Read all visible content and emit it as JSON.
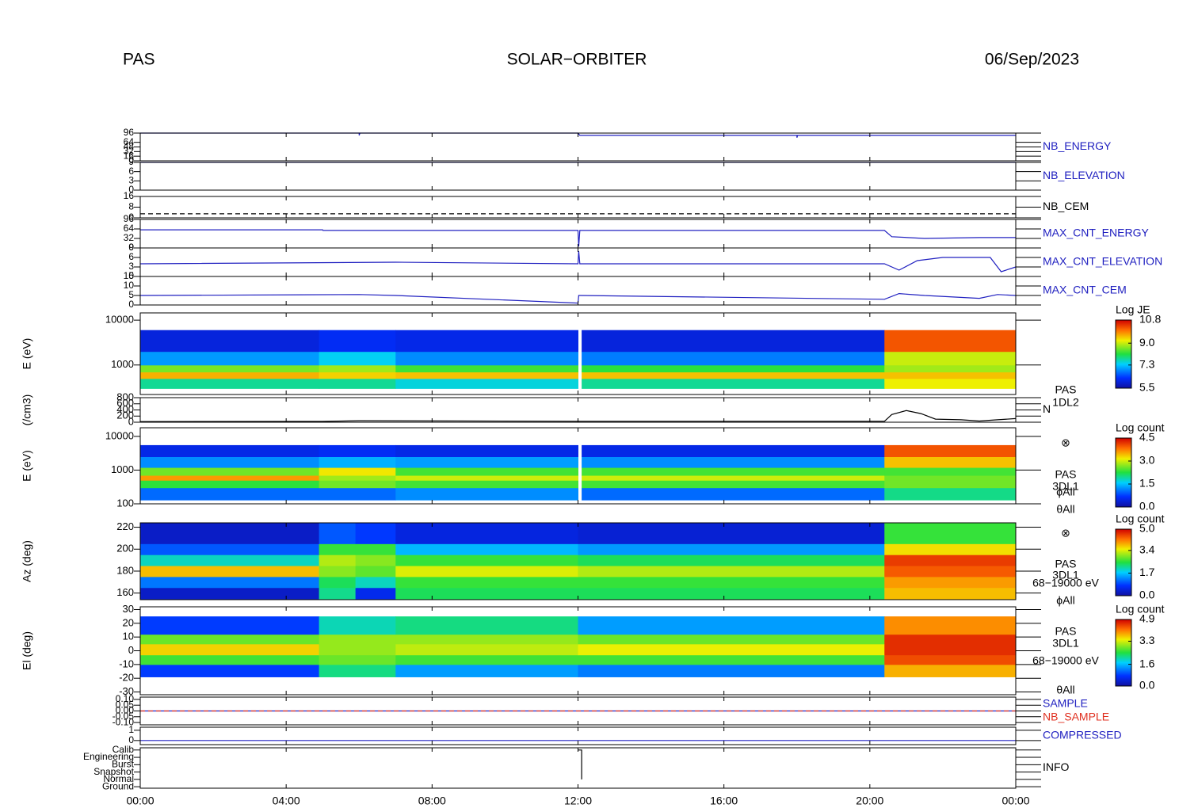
{
  "header": {
    "left": "PAS",
    "center": "SOLAR−ORBITER",
    "right": "06/Sep/2023"
  },
  "chart_data": [
    {
      "type": "line",
      "ylim": [
        0,
        96
      ],
      "yticks": [
        0,
        16,
        32,
        48,
        64,
        96
      ],
      "series": [
        {
          "name": "NB_ENERGY",
          "color": "#2020c0",
          "x": [
            0,
            6,
            6,
            6.02,
            12,
            12.05,
            18,
            18,
            18.02,
            24
          ],
          "values": [
            96,
            96,
            88,
            96,
            96,
            88,
            88,
            80,
            88,
            88
          ]
        }
      ]
    },
    {
      "type": "line",
      "ylim": [
        0,
        9
      ],
      "yticks": [
        0,
        3,
        6,
        9
      ],
      "series": [
        {
          "name": "NB_ELEVATION",
          "color": "#2020c0",
          "x": [
            0,
            24
          ],
          "values": [
            9,
            9
          ]
        }
      ]
    },
    {
      "type": "line",
      "ylim": [
        0,
        16
      ],
      "yticks": [
        0,
        8,
        16
      ],
      "series": [
        {
          "name": "NB_CEM",
          "color": "#000000",
          "linestyle": "dashed",
          "x": [
            0,
            24
          ],
          "values": [
            3,
            3
          ]
        }
      ]
    },
    {
      "type": "line",
      "ylim": [
        0,
        96
      ],
      "yticks": [
        0,
        32,
        64,
        96
      ],
      "series": [
        {
          "name": "MAX_CNT_ENERGY",
          "color": "#2020c0",
          "x": [
            0,
            5,
            5.01,
            12,
            12.02,
            12.05,
            20.4,
            20.6,
            21.5,
            23,
            24
          ],
          "values": [
            61,
            61,
            59,
            59,
            5,
            59,
            59,
            38,
            32,
            35,
            35
          ]
        }
      ]
    },
    {
      "type": "line",
      "ylim": [
        0,
        9
      ],
      "yticks": [
        0,
        3,
        6,
        9
      ],
      "series": [
        {
          "name": "MAX_CNT_ELEVATION",
          "color": "#2020c0",
          "x": [
            0,
            7,
            12,
            12.02,
            12.05,
            20.4,
            20.8,
            21.3,
            22,
            23.3,
            23.6,
            24
          ],
          "values": [
            4,
            4.5,
            4,
            8,
            4,
            4,
            2,
            5,
            6,
            6,
            1.5,
            3
          ]
        }
      ]
    },
    {
      "type": "line",
      "ylim": [
        0,
        15
      ],
      "yticks": [
        0,
        5,
        10,
        15
      ],
      "series": [
        {
          "name": "MAX_CNT_CEM",
          "color": "#2020c0",
          "x": [
            0,
            6,
            7,
            12,
            12.02,
            12.05,
            20.4,
            20.8,
            21.5,
            23,
            23.5,
            24
          ],
          "values": [
            5,
            5.5,
            5,
            1,
            5,
            5,
            3,
            6,
            5,
            3.5,
            5.5,
            5
          ]
        }
      ]
    },
    {
      "type": "heatmap",
      "ylabel": "E (eV)",
      "ylog": true,
      "ylim": [
        220,
        14500
      ],
      "yticks": [
        1000,
        10000
      ],
      "colorbar_title": "Log JE",
      "clim": [
        5.5,
        10.8
      ],
      "cticks": [
        5.5,
        7.3,
        {
          "value": 9,
          "label": "9.0"
        },
        10.8
      ],
      "x": [
        0,
        4.9,
        7,
        12,
        12.1,
        20.4,
        24
      ],
      "y": [
        300,
        500,
        700,
        1000,
        2000,
        6000
      ],
      "values": [
        [
          7.8,
          7.8,
          7.5,
          null,
          7.8,
          9.2
        ],
        [
          9.6,
          9.4,
          9.5,
          null,
          9.5,
          9.5
        ],
        [
          8.6,
          8.8,
          8.3,
          null,
          8.2,
          8.8
        ],
        [
          7.0,
          7.4,
          6.9,
          null,
          6.8,
          9.0
        ],
        [
          6.0,
          6.2,
          6.1,
          null,
          6.0,
          10.2
        ]
      ]
    },
    {
      "type": "line",
      "ylabel": "(/cm3)",
      "ylim": [
        0,
        800
      ],
      "yticks": [
        0,
        200,
        400,
        600,
        800
      ],
      "side_labels": [
        "PAS",
        "1DL2"
      ],
      "series": [
        {
          "name": "N",
          "color": "#000000",
          "x": [
            0,
            5,
            6,
            12,
            20.4,
            20.6,
            21,
            21.4,
            21.8,
            22.5,
            23,
            23.5,
            24
          ],
          "values": [
            20,
            25,
            50,
            30,
            30,
            250,
            380,
            280,
            100,
            80,
            40,
            80,
            120
          ]
        }
      ]
    },
    {
      "type": "heatmap",
      "ylabel": "E (eV)",
      "ylog": true,
      "ylim": [
        100,
        18000
      ],
      "yticks": [
        100,
        1000,
        10000
      ],
      "colorbar_title": "Log count",
      "clim": [
        0,
        4.5
      ],
      "cticks": [
        {
          "value": 0,
          "label": "0.0"
        },
        1.5,
        {
          "value": 3,
          "label": "3.0"
        },
        4.5
      ],
      "side_labels": [
        "⊗",
        "PAS",
        "3DL1",
        "ϕAll",
        "θAll"
      ],
      "x": [
        0,
        4.9,
        7,
        12,
        12.1,
        20.4,
        24
      ],
      "y": [
        130,
        300,
        500,
        700,
        1200,
        2500,
        5500
      ],
      "values": [
        [
          1.0,
          1.0,
          1.2,
          null,
          1.0,
          2.0
        ],
        [
          2.3,
          2.6,
          2.4,
          null,
          2.4,
          2.6
        ],
        [
          3.6,
          2.8,
          3.0,
          null,
          3.0,
          2.6
        ],
        [
          2.6,
          3.2,
          2.4,
          null,
          2.4,
          2.4
        ],
        [
          1.2,
          1.4,
          1.3,
          null,
          1.2,
          3.4
        ],
        [
          0.5,
          0.6,
          0.5,
          null,
          0.5,
          4.0
        ]
      ]
    },
    {
      "type": "heatmap",
      "ylabel": "Az (deg)",
      "ylim": [
        154,
        224
      ],
      "yticks": [
        160,
        180,
        200,
        220
      ],
      "colorbar_title": "Log count",
      "clim": [
        0,
        5
      ],
      "cticks": [
        {
          "value": 0,
          "label": "0.0"
        },
        1.7,
        3.4,
        {
          "value": 5,
          "label": "5.0"
        }
      ],
      "side_labels": [
        "⊗",
        "PAS",
        "3DL1",
        "68−19000 eV",
        "ϕAll"
      ],
      "x": [
        0,
        4.9,
        5.9,
        7,
        12,
        20.4,
        24
      ],
      "y": [
        154,
        165,
        175,
        185,
        195,
        205,
        224
      ],
      "values": [
        [
          0.3,
          2.2,
          0.6,
          2.4,
          2.4,
          3.8
        ],
        [
          1.2,
          2.4,
          2.0,
          2.6,
          2.6,
          4.0
        ],
        [
          3.8,
          3.0,
          2.8,
          3.4,
          3.2,
          4.4
        ],
        [
          2.0,
          3.2,
          3.0,
          2.6,
          2.4,
          4.6
        ],
        [
          1.0,
          2.6,
          2.6,
          1.6,
          1.4,
          3.6
        ],
        [
          0.3,
          1.0,
          0.8,
          0.5,
          0.4,
          2.6
        ]
      ]
    },
    {
      "type": "heatmap",
      "ylabel": "El (deg)",
      "ylim": [
        -32,
        32
      ],
      "yticks": [
        -30,
        -20,
        -10,
        0,
        10,
        20,
        30
      ],
      "colorbar_title": "Log count",
      "clim": [
        0,
        4.9
      ],
      "cticks": [
        {
          "value": 0,
          "label": "0.0"
        },
        1.6,
        3.3,
        4.9
      ],
      "side_labels": [
        "PAS",
        "3DL1",
        "68−19000 eV",
        "θAll"
      ],
      "x": [
        0,
        4.9,
        7,
        12,
        20.4,
        24
      ],
      "y": [
        -19,
        -10,
        -3,
        5,
        12,
        25
      ],
      "values": [
        [
          0.8,
          2.2,
          1.4,
          1.2,
          3.8
        ],
        [
          2.6,
          2.8,
          2.6,
          2.6,
          4.4
        ],
        [
          3.6,
          3.0,
          3.2,
          3.4,
          4.6
        ],
        [
          2.8,
          3.0,
          3.0,
          2.8,
          4.6
        ],
        [
          0.8,
          2.0,
          2.2,
          1.4,
          4.0
        ]
      ]
    },
    {
      "type": "line",
      "ylim": [
        -0.12,
        0.12
      ],
      "yticks": [
        {
          "value": -0.1,
          "label": "-0.10"
        },
        {
          "value": -0.05,
          "label": "-0.05"
        },
        {
          "value": 0,
          "label": "0.00"
        },
        {
          "value": 0.05,
          "label": "0.05"
        },
        {
          "value": 0.1,
          "label": "0.10"
        }
      ],
      "series": [
        {
          "name": "SAMPLE",
          "color": "#2020c0",
          "x": [
            0,
            24
          ],
          "values": [
            0,
            0
          ]
        },
        {
          "name": "NB_SAMPLE",
          "color": "#e03020",
          "linestyle": "dashed",
          "x": [
            0,
            24
          ],
          "values": [
            0,
            0
          ]
        }
      ]
    },
    {
      "type": "line",
      "ylim": [
        -0.4,
        1.3
      ],
      "yticks": [
        0,
        1
      ],
      "series": [
        {
          "name": "COMPRESSED",
          "color": "#2020c0",
          "x": [
            0,
            24
          ],
          "values": [
            0,
            0
          ]
        }
      ]
    },
    {
      "type": "line",
      "ylim": [
        -0.2,
        5.3
      ],
      "yticks": [
        {
          "value": 0,
          "label": "Ground"
        },
        {
          "value": 1,
          "label": "Normal"
        },
        {
          "value": 2,
          "label": "Snapshot"
        },
        {
          "value": 3,
          "label": "Burst"
        },
        {
          "value": 4,
          "label": "Engineering"
        },
        {
          "value": 5,
          "label": "Calib"
        }
      ],
      "series": [
        {
          "name": "INFO",
          "color": "#000000",
          "x": [
            12,
            12.1,
            12.1
          ],
          "values": [
            5,
            5,
            1
          ]
        }
      ],
      "xlim": [
        0,
        24
      ],
      "xticks": [
        {
          "value": 0,
          "label": "00:00"
        },
        {
          "value": 4,
          "label": "04:00"
        },
        {
          "value": 8,
          "label": "08:00"
        },
        {
          "value": 12,
          "label": "12:00"
        },
        {
          "value": 16,
          "label": "16:00"
        },
        {
          "value": 20,
          "label": "20:00"
        },
        {
          "value": 24,
          "label": "00:00"
        }
      ]
    }
  ]
}
